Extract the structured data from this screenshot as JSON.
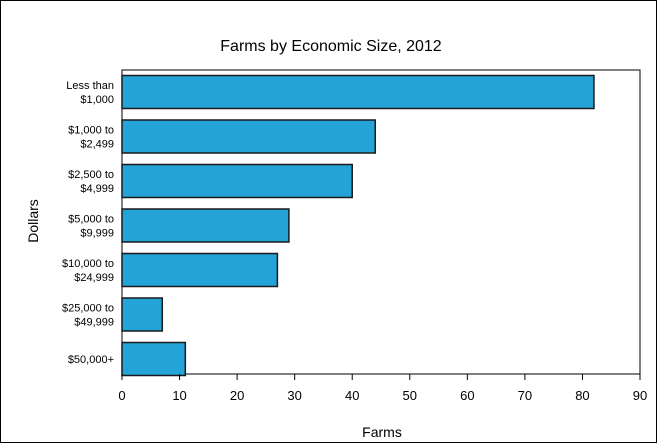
{
  "chart_data": {
    "type": "bar",
    "orientation": "horizontal",
    "title": "Farms by Economic Size, 2012",
    "xlabel": "Farms",
    "ylabel": "Dollars",
    "categories": [
      [
        "Less than",
        "$1,000"
      ],
      [
        "$1,000 to",
        "$2,499"
      ],
      [
        "$2,500 to",
        "$4,999"
      ],
      [
        "$5,000 to",
        "$9,999"
      ],
      [
        "$10,000 to",
        "$24,999"
      ],
      [
        "$25,000 to",
        "$49,999"
      ],
      [
        "$50,000+"
      ]
    ],
    "values": [
      82,
      44,
      40,
      29,
      27,
      7,
      11
    ],
    "xlim": [
      0,
      90
    ],
    "xticks": [
      "0",
      "10",
      "20",
      "30",
      "40",
      "50",
      "60",
      "70",
      "80",
      "90"
    ],
    "grid": false,
    "legend": "none",
    "colors": {
      "bar_fill": "#24A3D8",
      "bar_stroke": "#1A1A1A",
      "axis": "#000000",
      "frame": "#000000"
    }
  }
}
